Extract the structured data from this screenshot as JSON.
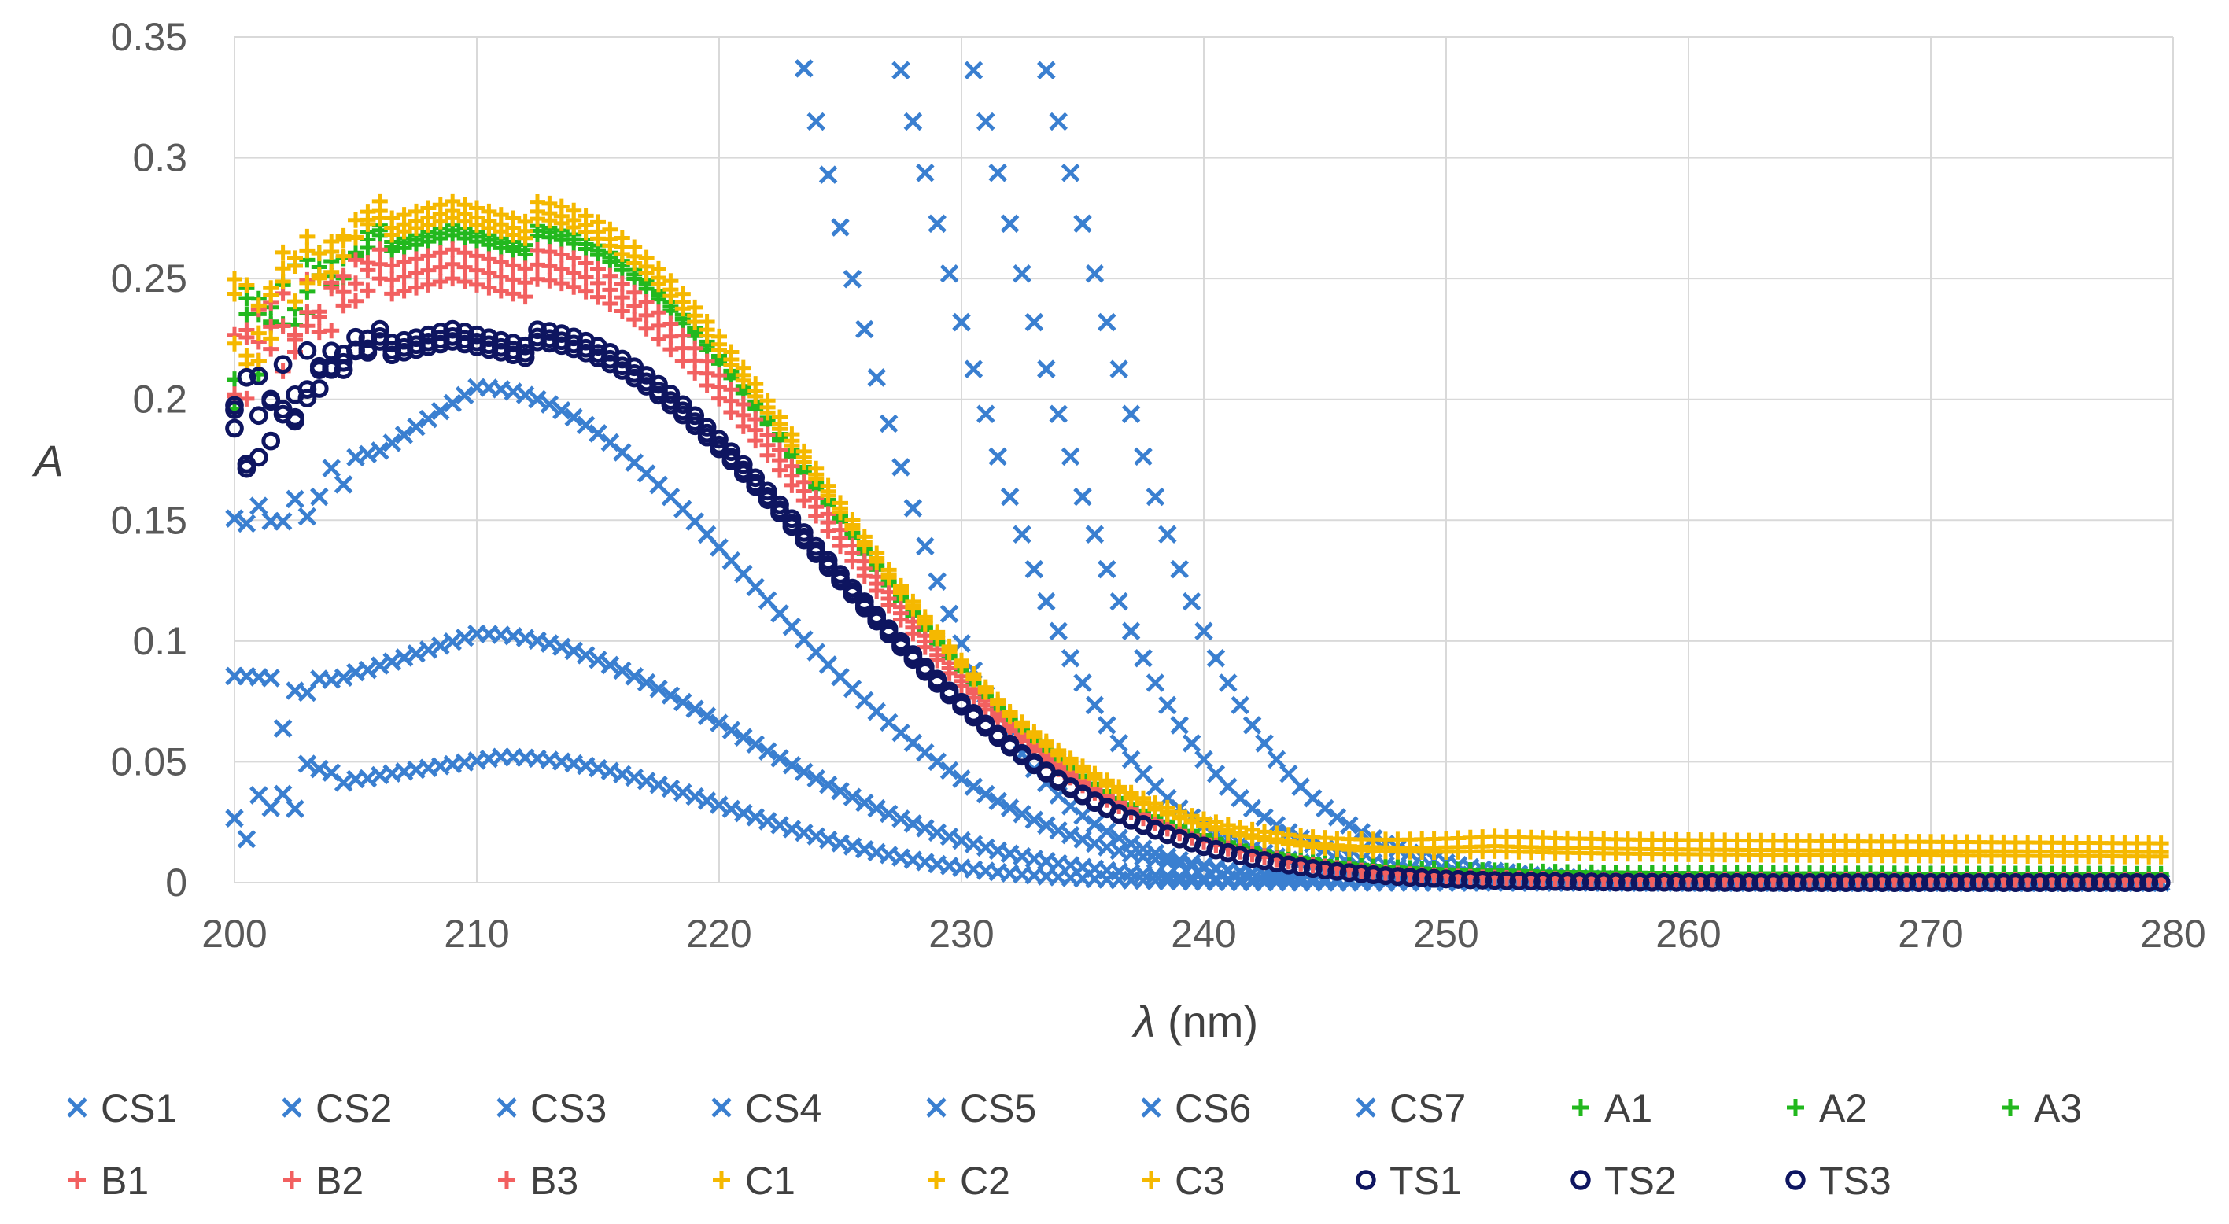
{
  "chart_data": {
    "type": "scatter",
    "title": "",
    "xlabel_symbol": "λ",
    "xlabel_unit": " (nm)",
    "ylabel": "A",
    "xlim": [
      200,
      280
    ],
    "ylim": [
      0,
      0.35
    ],
    "x_ticks": [
      "200",
      "210",
      "220",
      "230",
      "240",
      "250",
      "260",
      "270",
      "280"
    ],
    "y_ticks": [
      "0",
      "0.05",
      "0.1",
      "0.15",
      "0.2",
      "0.25",
      "0.3",
      "0.35"
    ],
    "grid": true,
    "legend_position": "bottom",
    "series": [
      {
        "name": "CS1",
        "marker": "x",
        "color": "#3a7fd0",
        "kind": "cs",
        "params": {
          "peak": 0.052,
          "center": 211,
          "width": 13
        }
      },
      {
        "name": "CS2",
        "marker": "x",
        "color": "#3a7fd0",
        "kind": "cs",
        "params": {
          "peak": 0.103,
          "center": 210,
          "width": 15
        }
      },
      {
        "name": "CS3",
        "marker": "x",
        "color": "#3a7fd0",
        "kind": "cs",
        "params": {
          "peak": 0.205,
          "center": 210,
          "width": 16
        }
      },
      {
        "name": "CS4",
        "marker": "x",
        "color": "#3a7fd0",
        "kind": "steep",
        "params": {
          "x0": 218,
          "k": 0.28
        }
      },
      {
        "name": "CS5",
        "marker": "x",
        "color": "#3a7fd0",
        "kind": "steep",
        "params": {
          "x0": 222,
          "k": 0.27
        }
      },
      {
        "name": "CS6",
        "marker": "x",
        "color": "#3a7fd0",
        "kind": "steep",
        "params": {
          "x0": 225,
          "k": 0.27
        }
      },
      {
        "name": "CS7",
        "marker": "x",
        "color": "#3a7fd0",
        "kind": "steep",
        "params": {
          "x0": 228,
          "k": 0.27
        }
      },
      {
        "name": "A1",
        "marker": "plus",
        "color": "#22b81e",
        "kind": "sample",
        "params": {
          "peak": 0.272,
          "tail": 0.004
        }
      },
      {
        "name": "A2",
        "marker": "plus",
        "color": "#22b81e",
        "kind": "sample",
        "params": {
          "peak": 0.27,
          "tail": 0.004
        }
      },
      {
        "name": "A3",
        "marker": "plus",
        "color": "#22b81e",
        "kind": "sample",
        "params": {
          "peak": 0.268,
          "tail": 0.003
        }
      },
      {
        "name": "B1",
        "marker": "plus",
        "color": "#f26060",
        "kind": "sample",
        "params": {
          "peak": 0.262,
          "tail": 0.001
        }
      },
      {
        "name": "B2",
        "marker": "plus",
        "color": "#f26060",
        "kind": "sample",
        "params": {
          "peak": 0.256,
          "tail": 0.001
        }
      },
      {
        "name": "B3",
        "marker": "plus",
        "color": "#f26060",
        "kind": "sample",
        "params": {
          "peak": 0.25,
          "tail": 0.001
        }
      },
      {
        "name": "C1",
        "marker": "plus",
        "color": "#f5b800",
        "kind": "sample",
        "params": {
          "peak": 0.282,
          "tail": 0.018
        }
      },
      {
        "name": "C2",
        "marker": "plus",
        "color": "#f5b800",
        "kind": "sample",
        "params": {
          "peak": 0.278,
          "tail": 0.014
        }
      },
      {
        "name": "C3",
        "marker": "plus",
        "color": "#f5b800",
        "kind": "sample",
        "params": {
          "peak": 0.275,
          "tail": 0.012
        }
      },
      {
        "name": "TS1",
        "marker": "circle",
        "color": "#0e1560",
        "kind": "sample",
        "params": {
          "peak": 0.229,
          "tail": 0.0
        }
      },
      {
        "name": "TS2",
        "marker": "circle",
        "color": "#0e1560",
        "kind": "sample",
        "params": {
          "peak": 0.226,
          "tail": 0.0
        }
      },
      {
        "name": "TS3",
        "marker": "circle",
        "color": "#0e1560",
        "kind": "sample",
        "params": {
          "peak": 0.224,
          "tail": 0.0
        }
      }
    ]
  }
}
